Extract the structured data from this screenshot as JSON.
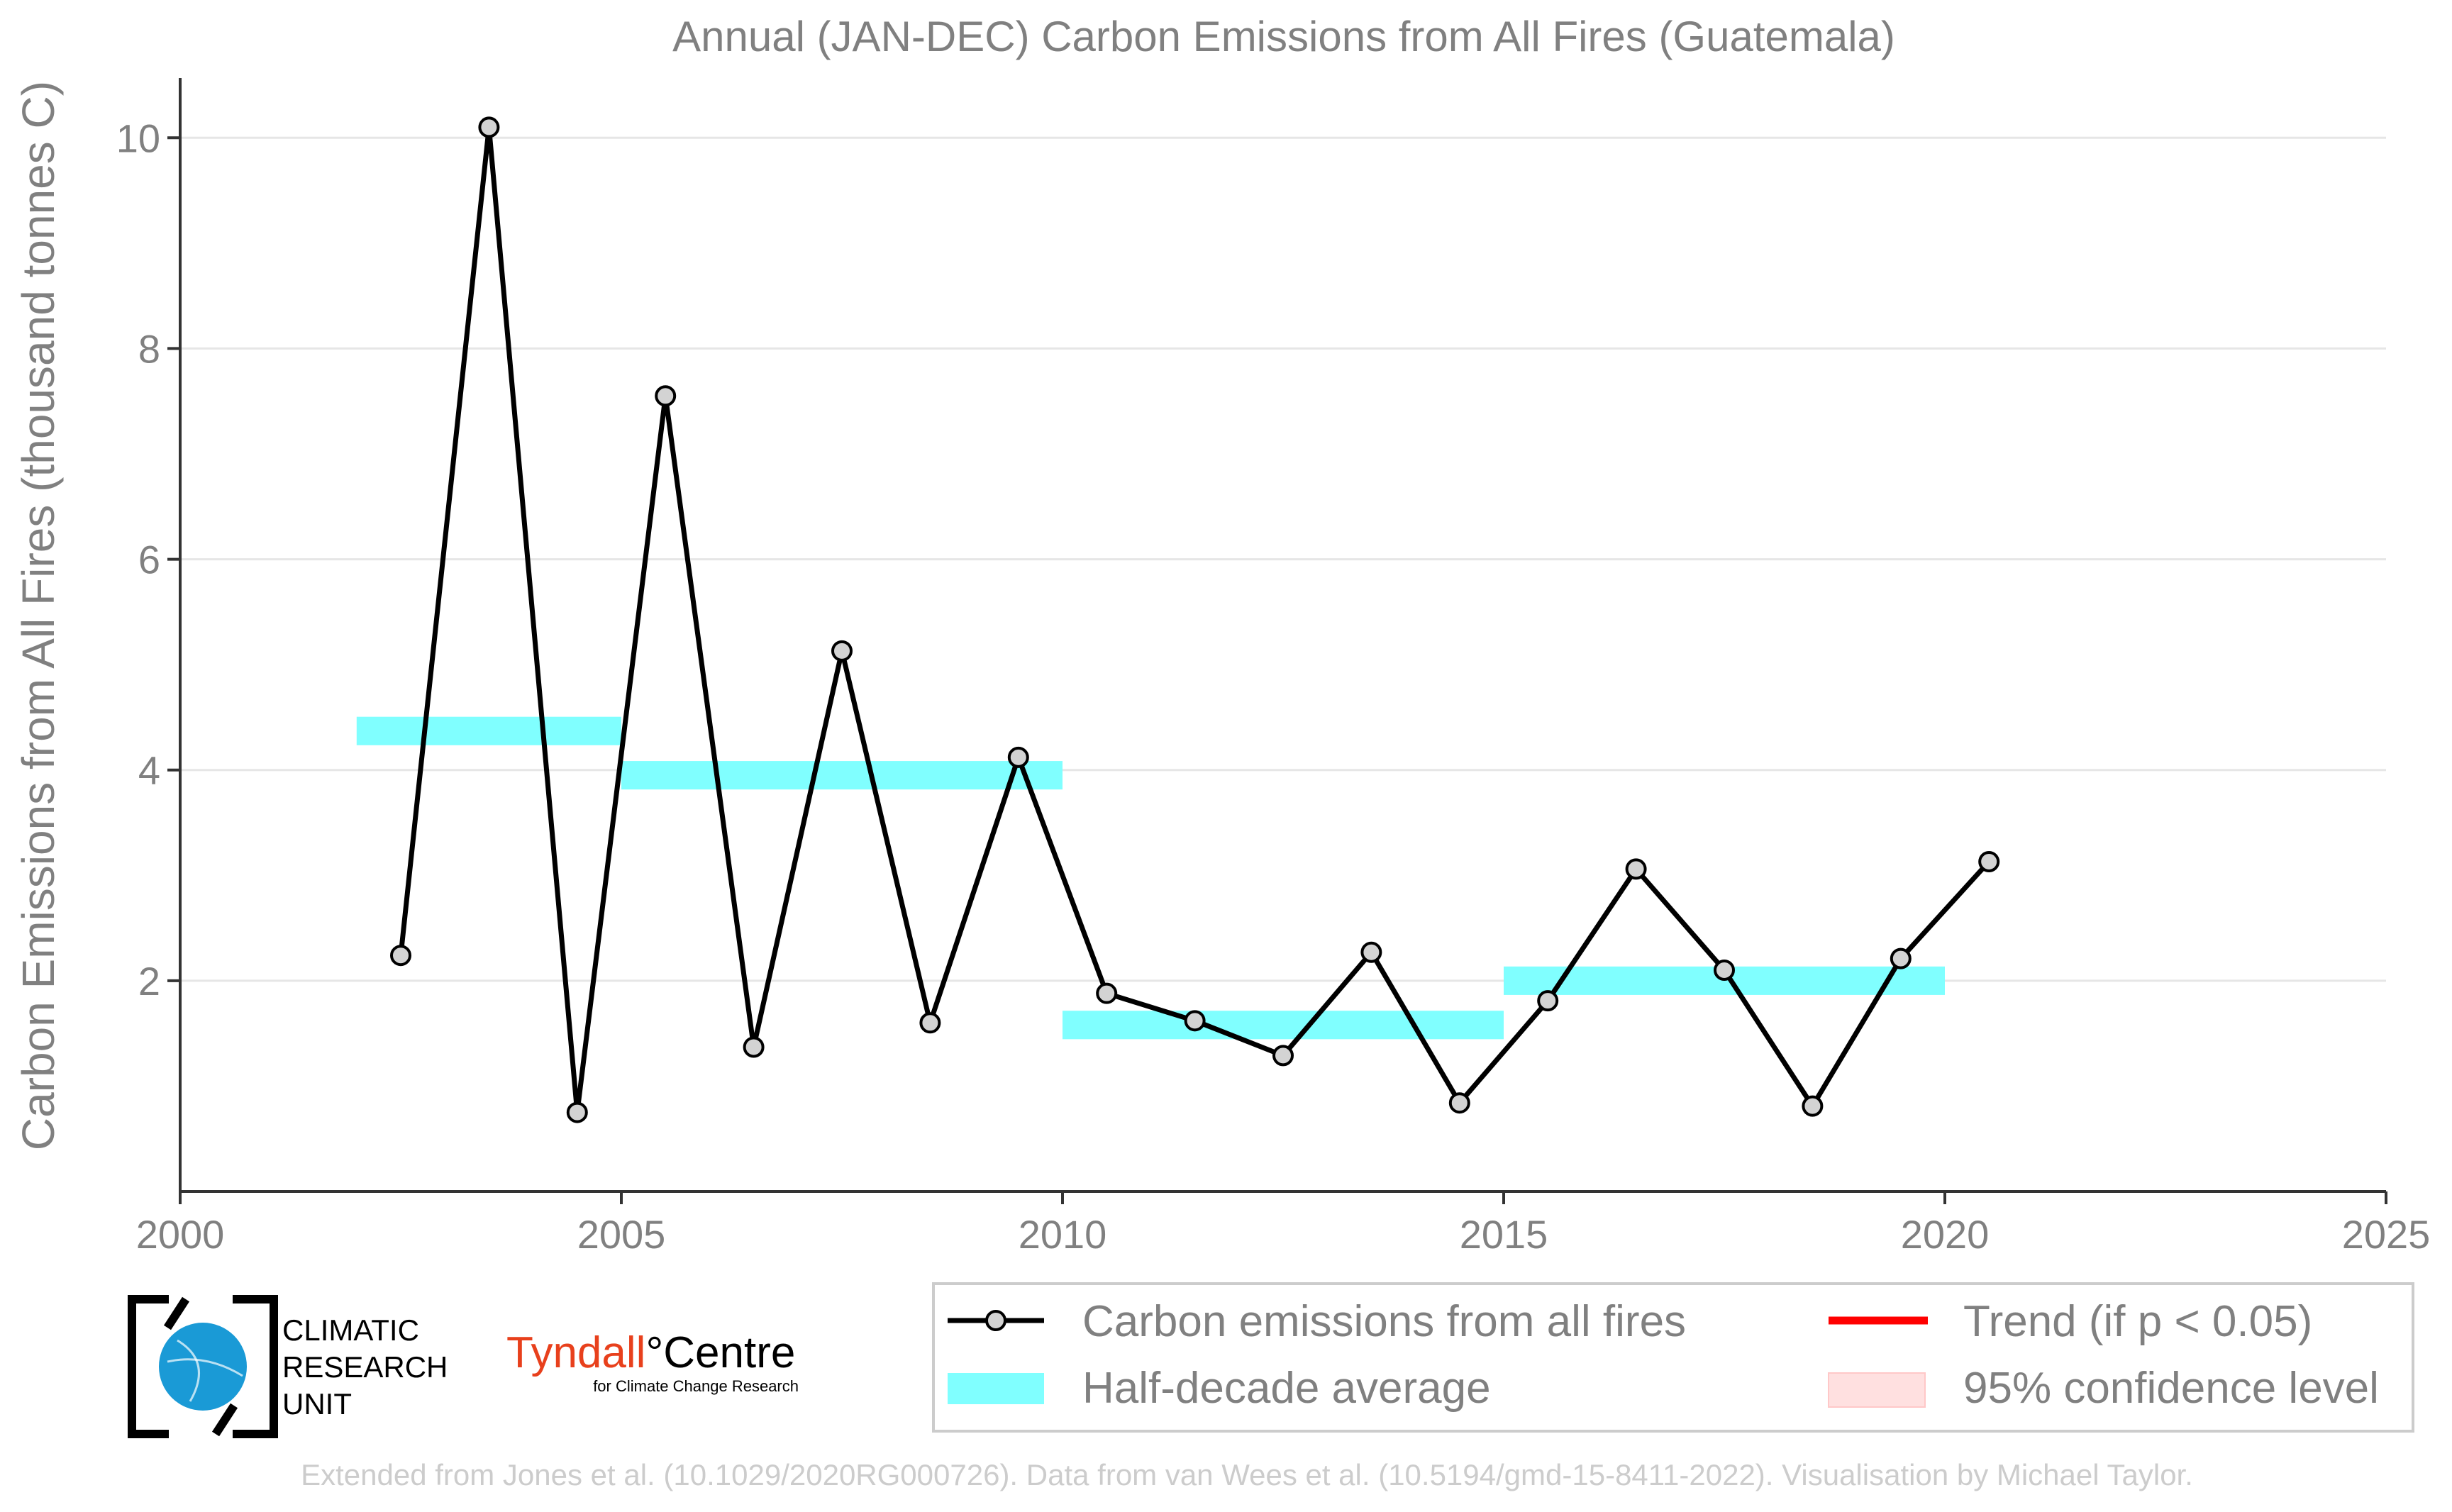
{
  "chart_data": {
    "type": "line",
    "title": "Annual (JAN-DEC) Carbon Emissions from All Fires (Guatemala)",
    "xlabel": "",
    "ylabel": "Carbon Emissions from All Fires (thousand tonnes C)",
    "xlim": [
      2000,
      2025
    ],
    "ylim": [
      0,
      10.5
    ],
    "x_ticks": [
      2000,
      2005,
      2010,
      2015,
      2020,
      2025
    ],
    "y_ticks": [
      2,
      4,
      6,
      8,
      10
    ],
    "grid": "horizontal",
    "series": [
      {
        "name": "Carbon emissions from all fires",
        "color": "#000000",
        "marker_fill": "#d3d3d3",
        "x": [
          2002.5,
          2003.5,
          2004.5,
          2005.5,
          2006.5,
          2007.5,
          2008.5,
          2009.5,
          2010.5,
          2011.5,
          2012.5,
          2013.5,
          2014.5,
          2015.5,
          2016.5,
          2017.5,
          2018.5,
          2019.5,
          2020.5
        ],
        "y": [
          2.24,
          10.1,
          0.75,
          7.55,
          1.37,
          5.13,
          1.6,
          4.12,
          1.88,
          1.62,
          1.29,
          2.27,
          0.84,
          1.81,
          3.06,
          2.1,
          0.81,
          2.21,
          3.13
        ]
      }
    ],
    "half_decade_average": {
      "name": "Half-decade average",
      "color": "#80ffff",
      "segments": [
        {
          "x_start": 2002,
          "x_end": 2005,
          "value": 4.37
        },
        {
          "x_start": 2005,
          "x_end": 2010,
          "value": 3.95
        },
        {
          "x_start": 2010,
          "x_end": 2015,
          "value": 1.58
        },
        {
          "x_start": 2015,
          "x_end": 2020,
          "value": 2.0
        }
      ]
    },
    "legend": {
      "placement": "bottom-right",
      "entries": [
        {
          "label": "Carbon emissions from all fires",
          "kind": "line-marker",
          "color": "#000000"
        },
        {
          "label": "Trend (if p < 0.05)",
          "kind": "line",
          "color": "#ff0000"
        },
        {
          "label": "Half-decade average",
          "kind": "band",
          "color": "#80ffff"
        },
        {
          "label": "95% confidence level",
          "kind": "band",
          "color": "#ffe0e0"
        }
      ]
    }
  },
  "logos": {
    "cru": {
      "lines": [
        "CLIMATIC",
        "RESEARCH",
        "UNIT"
      ],
      "globe_color": "#1a9ad6"
    },
    "tyndall": {
      "main": "Tyndall",
      "centre": "°Centre",
      "sub": "for Climate Change Research"
    }
  },
  "footer": "Extended from Jones et al. (10.1029/2020RG000726). Data from van Wees et al. (10.5194/gmd-15-8411-2022). Visualisation by Michael Taylor."
}
